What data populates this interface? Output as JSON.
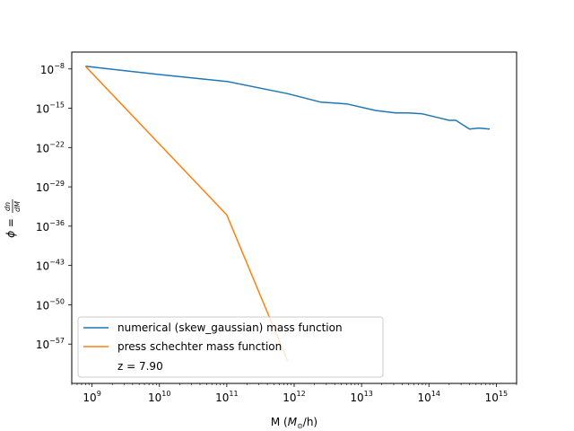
{
  "chart_data": {
    "type": "line",
    "title": "",
    "xlabel": "M ($M_\\odot$/h)",
    "ylabel": "$\\phi = \\frac{dn}{dM}$",
    "xscale": "log",
    "yscale": "log",
    "xlim": [
      500000000.0,
      2000000000000000.0
    ],
    "ylim": [
      1e-64,
      1e-05
    ],
    "x_ticks": [
      {
        "value": 1000000000.0,
        "base": "10",
        "exp": "9"
      },
      {
        "value": 10000000000.0,
        "base": "10",
        "exp": "10"
      },
      {
        "value": 100000000000.0,
        "base": "10",
        "exp": "11"
      },
      {
        "value": 1000000000000.0,
        "base": "10",
        "exp": "12"
      },
      {
        "value": 10000000000000.0,
        "base": "10",
        "exp": "13"
      },
      {
        "value": 100000000000000.0,
        "base": "10",
        "exp": "14"
      },
      {
        "value": 1000000000000000.0,
        "base": "10",
        "exp": "15"
      }
    ],
    "y_ticks": [
      {
        "value": 1e-08,
        "base": "10",
        "exp": "−8"
      },
      {
        "value": 1e-15,
        "base": "10",
        "exp": "−15"
      },
      {
        "value": 1e-22,
        "base": "10",
        "exp": "−22"
      },
      {
        "value": 1e-29,
        "base": "10",
        "exp": "−29"
      },
      {
        "value": 1e-36,
        "base": "10",
        "exp": "−36"
      },
      {
        "value": 1e-43,
        "base": "10",
        "exp": "−43"
      },
      {
        "value": 1e-50,
        "base": "10",
        "exp": "−50"
      },
      {
        "value": 1e-57,
        "base": "10",
        "exp": "−57"
      }
    ],
    "grid": false,
    "legend": {
      "placement": "lower-left",
      "note": "z = 7.90"
    },
    "series": [
      {
        "name": "numerical (skew_gaussian) mass function",
        "color": "#1f77b4",
        "x": [
          800000000.0,
          10000000000.0,
          100000000000.0,
          800000000000.0,
          2500000000000.0,
          6000000000000.0,
          16000000000000.0,
          32000000000000.0,
          50000000000000.0,
          80000000000000.0,
          140000000000000.0,
          200000000000000.0,
          250000000000000.0,
          400000000000000.0,
          550000000000000.0,
          800000000000000.0
        ],
        "y": [
          3e-08,
          1e-09,
          6e-11,
          4e-13,
          1.2e-14,
          6e-15,
          4e-16,
          1.5e-16,
          1.5e-16,
          1e-16,
          2e-17,
          7e-18,
          7e-18,
          2e-19,
          3e-19,
          2e-19
        ]
      },
      {
        "name": "press schechter mass function",
        "color": "#ff7f0e",
        "x": [
          800000000.0,
          100000000000.0,
          800000000000.0
        ],
        "y": [
          3e-08,
          1e-34,
          1e-60
        ]
      }
    ]
  }
}
